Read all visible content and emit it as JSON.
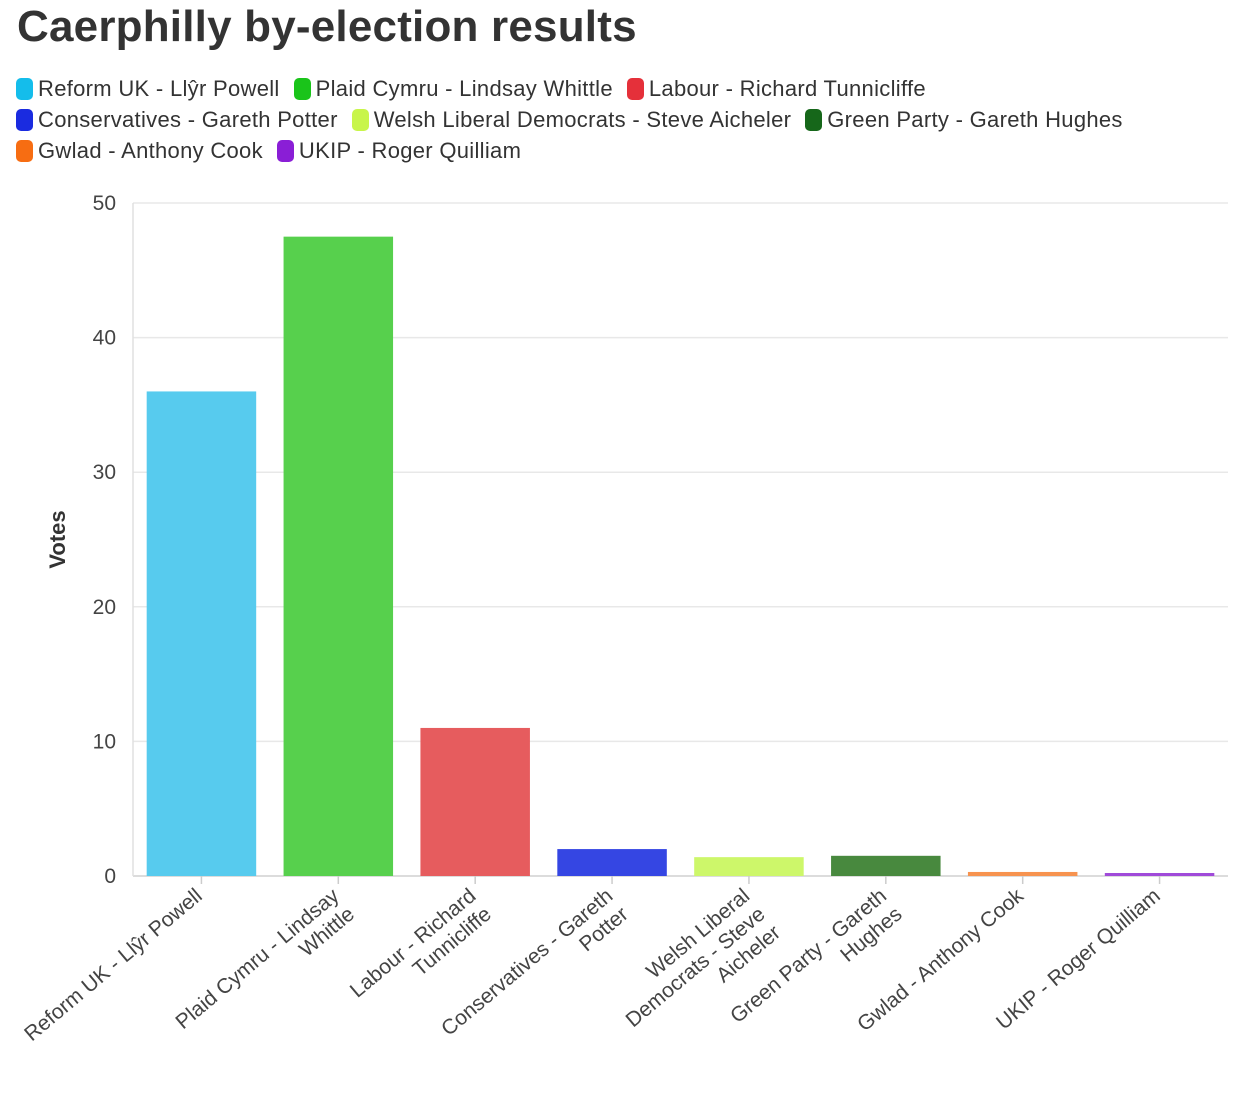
{
  "chart_data": {
    "type": "bar",
    "title": "Caerphilly by-election results",
    "xlabel": "",
    "ylabel": "Votes",
    "ylim": [
      0,
      50
    ],
    "yticks": [
      0,
      10,
      20,
      30,
      40,
      50
    ],
    "grid": true,
    "legend_position": "top",
    "categories": [
      "Reform UK - Llŷr Powell",
      "Plaid Cymru - Lindsay Whittle",
      "Labour - Richard Tunnicliffe",
      "Conservatives - Gareth Potter",
      "Welsh Liberal Democrats - Steve Aicheler",
      "Green Party - Gareth Hughes",
      "Gwlad - Anthony Cook",
      "UKIP - Roger Quilliam"
    ],
    "tick_labels": [
      [
        "Reform UK - Llŷr Powell"
      ],
      [
        "Plaid Cymru - Lindsay",
        "Whittle"
      ],
      [
        "Labour - Richard",
        "Tunnicliffe"
      ],
      [
        "Conservatives - Gareth",
        "Potter"
      ],
      [
        "Welsh Liberal",
        "Democrats - Steve",
        "Aicheler"
      ],
      [
        "Green Party - Gareth",
        "Hughes"
      ],
      [
        "Gwlad - Anthony Cook"
      ],
      [
        "UKIP - Roger Quilliam"
      ]
    ],
    "values": [
      36.0,
      47.5,
      11.0,
      2.0,
      1.4,
      1.5,
      0.3,
      0.2
    ],
    "legend_colors": [
      "#14bdeb",
      "#1ac41a",
      "#e5303a",
      "#1a2be0",
      "#c8f54a",
      "#16671a",
      "#f76d12",
      "#8a1ed6"
    ],
    "bar_colors": [
      "#57cbee",
      "#57d04d",
      "#e65c5e",
      "#3546e3",
      "#cdf76a",
      "#48893e",
      "#f7934f",
      "#a04ad9"
    ]
  }
}
